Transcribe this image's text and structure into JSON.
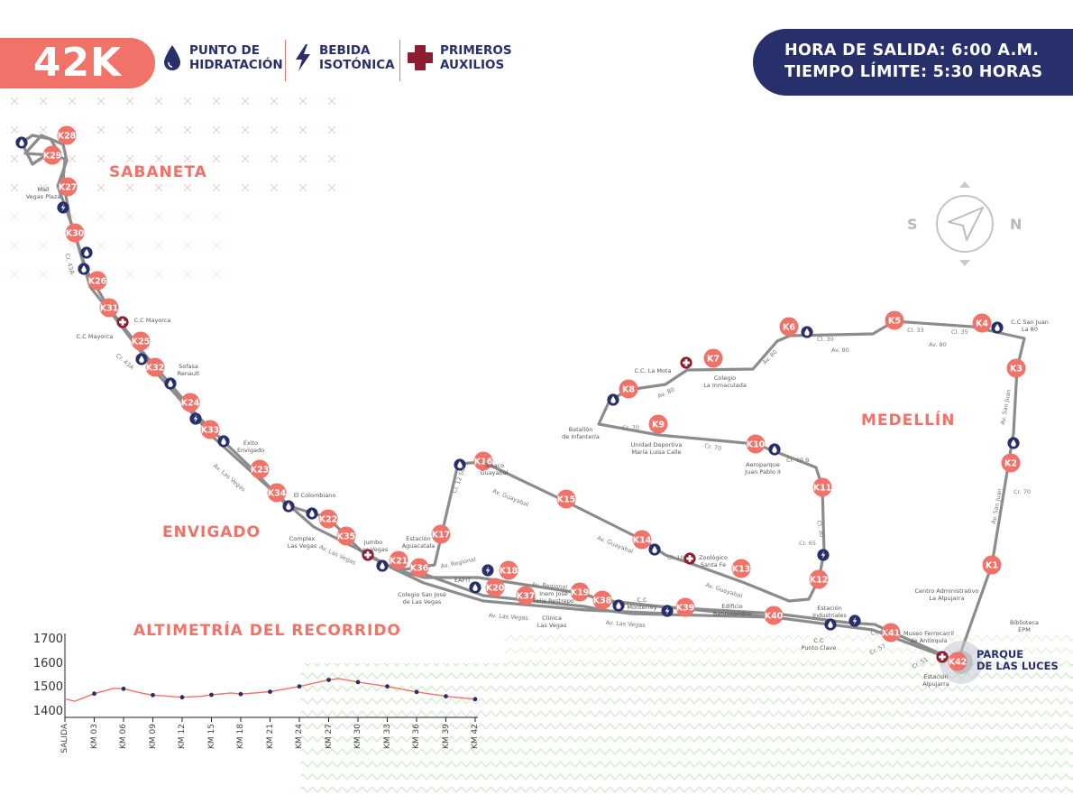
{
  "header": {
    "distance": "42K",
    "legend": [
      {
        "icon": "water-drop-icon",
        "line1": "PUNTO DE",
        "line2": "HIDRATACIÓN"
      },
      {
        "icon": "lightning-bolt-icon",
        "line1": "BEBIDA",
        "line2": "ISOTÓNICA"
      },
      {
        "icon": "red-cross-icon",
        "line1": "PRIMEROS",
        "line2": "AUXILIOS"
      }
    ],
    "departure": "HORA DE SALIDA: 6:00 A.M.",
    "time_limit": "TIEMPO LÍMITE: 5:30 HORAS"
  },
  "colors": {
    "coral": "#f07268",
    "navy": "#27306a",
    "route": "#8c8c8c",
    "green_pattern": "#cfe7c8"
  },
  "regions": {
    "sabaneta": "SABANETA",
    "envigado": "ENVIGADO",
    "medellin": "MEDELLÍN"
  },
  "compass": {
    "south": "S",
    "north": "N"
  },
  "finish": {
    "line1": "PARQUE",
    "line2": "DE LAS LUCES"
  },
  "km_markers": [
    "K1",
    "K2",
    "K3",
    "K4",
    "K5",
    "K6",
    "K7",
    "K8",
    "K9",
    "K10",
    "K11",
    "K12",
    "K13",
    "K14",
    "K15",
    "K16",
    "K17",
    "K18",
    "K19",
    "K20",
    "K21",
    "K22",
    "K23",
    "K24",
    "K25",
    "K26",
    "K27",
    "K28",
    "K29",
    "K30",
    "K31",
    "K32",
    "K33",
    "K34",
    "K35",
    "K36",
    "K37",
    "K38",
    "K39",
    "K40",
    "K41",
    "K42"
  ],
  "places": {
    "mall_vegas": "Mall\nVegas Plaza",
    "cc_mayorca_1": "C.C Mayorca",
    "cc_mayorca_2": "C.C Mayorca",
    "sofasa": "Sofasa\nRenault",
    "exito": "Éxito\nEnvigado",
    "el_colombiano": "El Colombiano",
    "complex": "Complex\nLas Vegas",
    "jumbo": "Jumbo\nLas Vegas",
    "estacion_aguacatala": "Estación\nAguacatala",
    "colegio_sj": "Colegio San José\nde Las Vegas",
    "texaco": "Texaco\nGuayabal",
    "eafit": "EAFIT",
    "inem": "Inem José\nFelix Restrepo",
    "clinica": "Clínica\nLas Vegas",
    "cc_monterrey": "C.C\nMonterrey",
    "zoologico": "Zoológico\nSanta Fe",
    "edificio_banco": "Edificio\nBancolombia",
    "estacion_industriales": "Estación\nIndustriales",
    "cc_punto_clave": "C.C\nPunto Clave",
    "museo": "Museo Ferrocarril\nde Antioquia",
    "estacion_alpujarra": "Estación\nAlpujarra",
    "biblioteca": "Biblioteca\nEPM",
    "centro_admin": "Centro Administrativo\nLa Alpujarra",
    "batallon": "Batallón\nde Infantería",
    "cc_la_mota": "C.C. La Mota",
    "colegio_inm": "Colegio\nLa Inmaculada",
    "unidad_dep": "Unidad Deportiva\nMaría Luisa Calle",
    "aeroparque": "Aeroparque\nJuan Pablo II",
    "cc_san_juan": "C.C San Juan\nLa 80"
  },
  "streets": {
    "cr43a": "Cr. 43A",
    "cr43a_2": "Cr. 43A",
    "av_las_vegas_1": "Av. Las Vegas",
    "av_las_vegas_2": "Av. Las Vegas",
    "av_las_vegas_3": "Av. Las Vegas",
    "av_las_vegas_4": "Av. Las Vegas",
    "av_regional_1": "Av. Regional",
    "av_regional_2": "Av. Regional",
    "cl12sur": "Cl. 12 Sur",
    "av_guayabal_1": "Av. Guayabal",
    "av_guayabal_2": "Av. Guayabal",
    "av_guayabal_3": "Av. Guayabal",
    "cl10": "Cl. 10",
    "cr65": "Cr. 65",
    "cl30_1": "Cl. 30",
    "cl30_2": "Cl. 30",
    "cr70_1": "Cr. 70",
    "cr70_2": "Cr. 70",
    "cr70_3": "Cr. 70",
    "cr69b": "Cr. 69 B",
    "av80_1": "Av. 80",
    "av80_2": "Av. 80",
    "av80_3": "Av. 80",
    "av80_4": "Av. 80",
    "cl33": "Cl. 33",
    "cl35": "Cl. 35",
    "av_san_juan_1": "Av. San Juan",
    "av_san_juan_2": "Av. San Juan",
    "cr57_1": "Cr. 57",
    "cr57_2": "Cr. 57",
    "cl51": "Cr. 51"
  },
  "altimetry": {
    "title": "ALTIMETRÍA DEL RECORRIDO",
    "y_ticks": [
      "1700",
      "1600",
      "1500",
      "1400"
    ]
  },
  "chart_data": {
    "type": "line",
    "title": "ALTIMETRÍA DEL RECORRIDO",
    "xlabel": "",
    "ylabel": "",
    "x_ticks": [
      "SALIDA",
      "KM 03",
      "KM 06",
      "KM 09",
      "KM 12",
      "KM 15",
      "KM 18",
      "KM 21",
      "KM 24",
      "KM 27",
      "KM 30",
      "KM 33",
      "KM 36",
      "KM 39",
      "KM 42"
    ],
    "ylim": [
      1400,
      1700
    ],
    "x": [
      0,
      1,
      3,
      5,
      6,
      8,
      9,
      12,
      14,
      15,
      17,
      18,
      21,
      24,
      27,
      28,
      30,
      33,
      36,
      39,
      42
    ],
    "series": [
      {
        "values": [
          1458,
          1448,
          1480,
          1502,
          1500,
          1481,
          1474,
          1465,
          1469,
          1475,
          1483,
          1478,
          1488,
          1510,
          1537,
          1543,
          1528,
          1510,
          1487,
          1469,
          1457
        ]
      }
    ],
    "markers_x": [
      3,
      6,
      9,
      12,
      15,
      18,
      21,
      24,
      27,
      30,
      33,
      36,
      39,
      42
    ],
    "grid": false
  }
}
